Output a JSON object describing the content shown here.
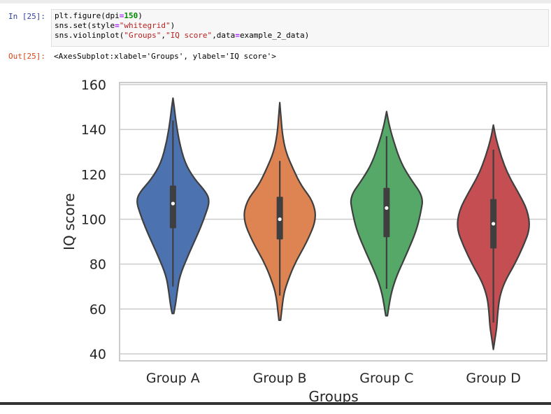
{
  "input_cell": {
    "prompt": "In [25]:",
    "code": {
      "line1": {
        "a": "plt.figure(dpi",
        "op": "=",
        "num": "150",
        "b": ")"
      },
      "line2": {
        "a": "sns.set(style",
        "op": "=",
        "str": "\"whitegrid\"",
        "b": ")"
      },
      "line3": {
        "a": "sns.violinplot(",
        "s1": "\"Groups\"",
        "c1": ",",
        "s2": "\"IQ score\"",
        "c2": ",data",
        "op": "=",
        "b": "example_2_data)"
      }
    }
  },
  "output_cell": {
    "prompt": "Out[25]:",
    "text": "<AxesSubplot:xlabel='Groups', ylabel='IQ score'>"
  },
  "chart_data": {
    "type": "violin",
    "xlabel": "Groups",
    "ylabel": "IQ score",
    "ylim": [
      40,
      160
    ],
    "yticks": [
      "40",
      "60",
      "80",
      "100",
      "120",
      "140",
      "160"
    ],
    "grid": "horizontal",
    "categories": [
      "Group A",
      "Group B",
      "Group C",
      "Group D"
    ],
    "groups": [
      {
        "name": "Group A",
        "color": "#4c72b0",
        "min": 58,
        "max": 154,
        "q1": 96,
        "median": 107,
        "q3": 115,
        "whisker_low": 70,
        "whisker_high": 144,
        "profile": [
          [
            58,
            0.02
          ],
          [
            62,
            0.06
          ],
          [
            68,
            0.1
          ],
          [
            75,
            0.16
          ],
          [
            85,
            0.38
          ],
          [
            95,
            0.62
          ],
          [
            102,
            0.76
          ],
          [
            108,
            0.86
          ],
          [
            112,
            0.78
          ],
          [
            118,
            0.5
          ],
          [
            125,
            0.28
          ],
          [
            135,
            0.14
          ],
          [
            145,
            0.06
          ],
          [
            150,
            0.03
          ],
          [
            154,
            0.0
          ]
        ]
      },
      {
        "name": "Group B",
        "color": "#dd8452",
        "min": 55,
        "max": 152,
        "q1": 91,
        "median": 100,
        "q3": 110,
        "whisker_low": 66,
        "whisker_high": 126,
        "profile": [
          [
            55,
            0.02
          ],
          [
            60,
            0.05
          ],
          [
            65,
            0.08
          ],
          [
            70,
            0.14
          ],
          [
            80,
            0.34
          ],
          [
            90,
            0.64
          ],
          [
            100,
            0.86
          ],
          [
            108,
            0.78
          ],
          [
            115,
            0.5
          ],
          [
            122,
            0.32
          ],
          [
            130,
            0.14
          ],
          [
            138,
            0.06
          ],
          [
            145,
            0.03
          ],
          [
            152,
            0.0
          ]
        ]
      },
      {
        "name": "Group C",
        "color": "#55a868",
        "min": 57,
        "max": 148,
        "q1": 92,
        "median": 105,
        "q3": 114,
        "whisker_low": 69,
        "whisker_high": 137,
        "profile": [
          [
            57,
            0.02
          ],
          [
            62,
            0.06
          ],
          [
            68,
            0.12
          ],
          [
            75,
            0.24
          ],
          [
            85,
            0.48
          ],
          [
            95,
            0.7
          ],
          [
            103,
            0.8
          ],
          [
            110,
            0.86
          ],
          [
            118,
            0.56
          ],
          [
            125,
            0.34
          ],
          [
            135,
            0.16
          ],
          [
            142,
            0.06
          ],
          [
            148,
            0.0
          ]
        ]
      },
      {
        "name": "Group D",
        "color": "#c44e52",
        "min": 42,
        "max": 142,
        "q1": 87,
        "median": 98,
        "q3": 109,
        "whisker_low": 54,
        "whisker_high": 131,
        "profile": [
          [
            42,
            0.0
          ],
          [
            47,
            0.04
          ],
          [
            52,
            0.08
          ],
          [
            58,
            0.1
          ],
          [
            65,
            0.14
          ],
          [
            72,
            0.26
          ],
          [
            80,
            0.5
          ],
          [
            88,
            0.7
          ],
          [
            96,
            0.86
          ],
          [
            104,
            0.8
          ],
          [
            112,
            0.58
          ],
          [
            120,
            0.34
          ],
          [
            128,
            0.18
          ],
          [
            136,
            0.06
          ],
          [
            142,
            0.0
          ]
        ]
      }
    ]
  }
}
